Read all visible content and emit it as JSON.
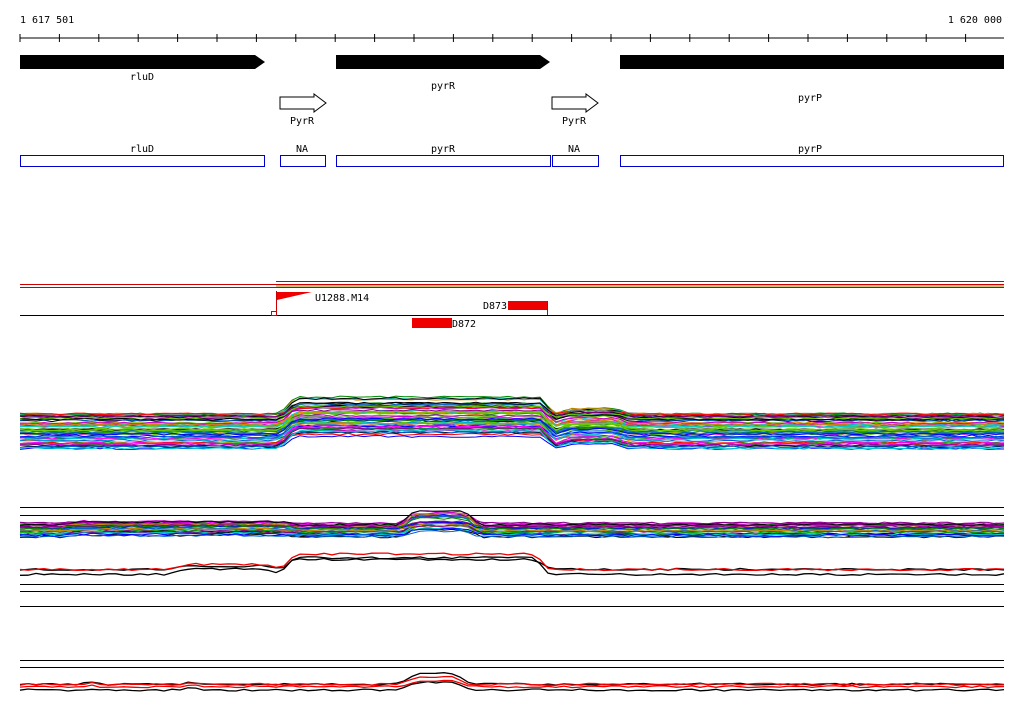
{
  "ruler": {
    "start": "1 617 501",
    "end": "1 620 000"
  },
  "genes": [
    {
      "label": "rluD"
    },
    {
      "label": "pyrR"
    },
    {
      "label": "pyrP"
    }
  ],
  "promoters": [
    {
      "label": "PyrR"
    },
    {
      "label": "PyrR"
    }
  ],
  "annotations": [
    {
      "label": "rluD"
    },
    {
      "label": "NA"
    },
    {
      "label": "pyrR"
    },
    {
      "label": "NA"
    },
    {
      "label": "pyrP"
    }
  ],
  "probes": [
    {
      "label": "U1288.M14"
    },
    {
      "label": "D873"
    },
    {
      "label": "D872"
    }
  ]
}
